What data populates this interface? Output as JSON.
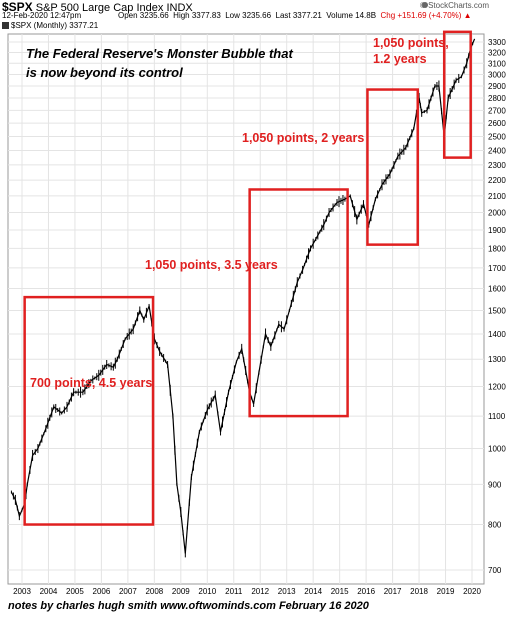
{
  "header": {
    "ticker": "$SPX",
    "name": "S&P 500 Large Cap Index",
    "exchange": "INDX",
    "credit": "© StockCharts.com",
    "date": "12-Feb-2020 12:47pm",
    "open": "Open 3235.66",
    "high": "High 3377.83",
    "low": "Low 3235.66",
    "last": "Last 3377.21",
    "volume": "Volume 14.8B",
    "chg": "Chg +151.69 (+4.70%)",
    "chg_arrow": "▲",
    "legend": "$SPX (Monthly) 3377.21"
  },
  "title_line1": "The Federal Reserve's Monster Bubble that",
  "title_line2": "is now beyond its control",
  "annotations": {
    "a1": "700 points, 4.5 years",
    "a2": "1,050 points, 3.5 years",
    "a3": "1,050 points, 2 years",
    "a4_line1": "1,050 points,",
    "a4_line2": "1.2 years"
  },
  "footer": "notes by charles hugh smith  www.oftwominds.com  February 16 2020",
  "colors": {
    "price": "#000000",
    "annotation": "#e02020",
    "grid": "#e4e4e4"
  },
  "chart_data": {
    "type": "line",
    "title": "",
    "xlabel": "",
    "ylabel": "",
    "xlim": [
      2002.6,
      2020.2
    ],
    "ylim": [
      650,
      3430
    ],
    "y_scale": "log",
    "grid": true,
    "x_ticks": [
      "2003",
      "2004",
      "2005",
      "2006",
      "2007",
      "2008",
      "2009",
      "2010",
      "2011",
      "2012",
      "2013",
      "2014",
      "2015",
      "2016",
      "2017",
      "2018",
      "2019",
      "2020"
    ],
    "y_ticks": [
      700,
      800,
      900,
      1000,
      1100,
      1200,
      1300,
      1400,
      1500,
      1600,
      1700,
      1800,
      1900,
      2000,
      2100,
      2200,
      2300,
      2400,
      2500,
      2600,
      2700,
      2800,
      2900,
      3000,
      3100,
      3200,
      3300
    ],
    "x": [
      2002.6,
      2002.75,
      2002.9,
      2003.1,
      2003.2,
      2003.4,
      2003.6,
      2003.9,
      2004.2,
      2004.5,
      2004.7,
      2004.95,
      2005.3,
      2005.6,
      2005.9,
      2006.2,
      2006.45,
      2006.6,
      2006.9,
      2007.2,
      2007.45,
      2007.6,
      2007.8,
      2008.0,
      2008.2,
      2008.5,
      2008.7,
      2008.85,
      2009.0,
      2009.17,
      2009.4,
      2009.7,
      2010.0,
      2010.3,
      2010.5,
      2010.8,
      2011.1,
      2011.3,
      2011.6,
      2011.75,
      2011.95,
      2012.2,
      2012.4,
      2012.7,
      2012.9,
      2013.1,
      2013.4,
      2013.6,
      2013.9,
      2014.1,
      2014.4,
      2014.6,
      2014.9,
      2015.2,
      2015.4,
      2015.65,
      2015.9,
      2016.1,
      2016.35,
      2016.6,
      2016.9,
      2017.2,
      2017.5,
      2017.8,
      2018.0,
      2018.1,
      2018.3,
      2018.6,
      2018.75,
      2018.95,
      2019.1,
      2019.4,
      2019.6,
      2019.8,
      2019.95,
      2020.1
    ],
    "y": [
      880,
      860,
      820,
      850,
      900,
      980,
      1000,
      1060,
      1130,
      1110,
      1130,
      1180,
      1180,
      1220,
      1240,
      1280,
      1270,
      1300,
      1380,
      1420,
      1500,
      1460,
      1520,
      1380,
      1330,
      1280,
      1100,
      900,
      830,
      735,
      920,
      1050,
      1120,
      1170,
      1050,
      1180,
      1290,
      1340,
      1180,
      1140,
      1250,
      1400,
      1350,
      1440,
      1420,
      1500,
      1630,
      1690,
      1800,
      1850,
      1930,
      2000,
      2060,
      2080,
      2100,
      1960,
      2050,
      1930,
      2080,
      2170,
      2240,
      2360,
      2420,
      2560,
      2800,
      2680,
      2700,
      2900,
      2900,
      2500,
      2800,
      2950,
      2980,
      3100,
      3240,
      3330
    ],
    "boxes": [
      {
        "label": "700 points, 4.5 years",
        "x0": 2003.1,
        "x1": 2007.95,
        "y_low": 800,
        "y_high": 1560
      },
      {
        "label": "1,050 points, 3.5 years",
        "x0": 2011.6,
        "x1": 2015.3,
        "y_low": 1100,
        "y_high": 2140
      },
      {
        "label": "1,050 points, 2 years",
        "x0": 2016.05,
        "x1": 2017.95,
        "y_low": 1820,
        "y_high": 2870
      },
      {
        "label": "1,050 points, 1.2 years",
        "x0": 2018.95,
        "x1": 2019.95,
        "y_low": 2350,
        "y_high": 3400
      }
    ]
  }
}
